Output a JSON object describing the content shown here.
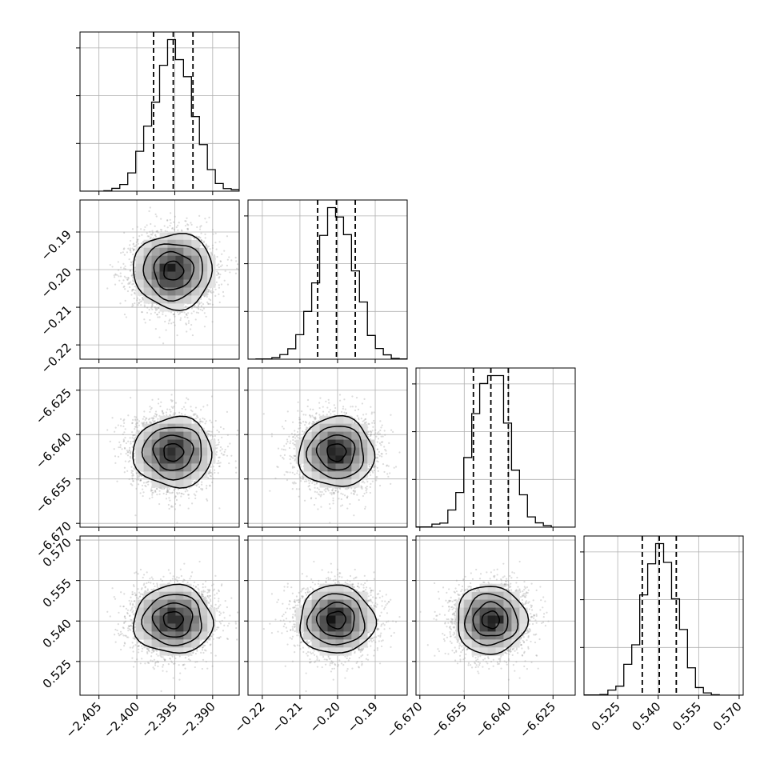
{
  "chart_data": {
    "type": "corner",
    "title": "",
    "grid": true,
    "parameters": [
      {
        "ticks": [
          -2.405,
          -2.4,
          -2.395,
          -2.39
        ],
        "tick_labels": [
          "−2.405",
          "−2.400",
          "−2.395",
          "−2.390"
        ],
        "range": [
          -2.4075,
          -2.3865
        ],
        "quantiles": [
          -2.3978,
          -2.3952,
          -2.3926
        ],
        "mean": -2.3952,
        "sd": 0.0026
      },
      {
        "ticks": [
          -0.22,
          -0.21,
          -0.2,
          -0.19
        ],
        "tick_labels": [
          "−0.22",
          "−0.21",
          "−0.20",
          "−0.19"
        ],
        "range": [
          -0.2238,
          -0.1815
        ],
        "quantiles": [
          -0.2053,
          -0.2003,
          -0.1953
        ],
        "mean": -0.2003,
        "sd": 0.005
      },
      {
        "ticks": [
          -6.67,
          -6.655,
          -6.64,
          -6.625
        ],
        "tick_labels": [
          "−6.670",
          "−6.655",
          "−6.640",
          "−6.625"
        ],
        "range": [
          -6.6713,
          -6.6175
        ],
        "quantiles": [
          -6.6519,
          -6.646,
          -6.6401
        ],
        "mean": -6.646,
        "sd": 0.0059
      },
      {
        "ticks": [
          0.525,
          0.54,
          0.555,
          0.57
        ],
        "tick_labels": [
          "0.525",
          "0.540",
          "0.555",
          "0.570"
        ],
        "range": [
          0.5125,
          0.5715
        ],
        "quantiles": [
          0.5341,
          0.5404,
          0.5467
        ],
        "mean": 0.5404,
        "sd": 0.0063
      }
    ],
    "histogram_bins": 20,
    "contour_levels": [
      "0.5σ",
      "1σ",
      "1.5σ",
      "2σ"
    ]
  }
}
